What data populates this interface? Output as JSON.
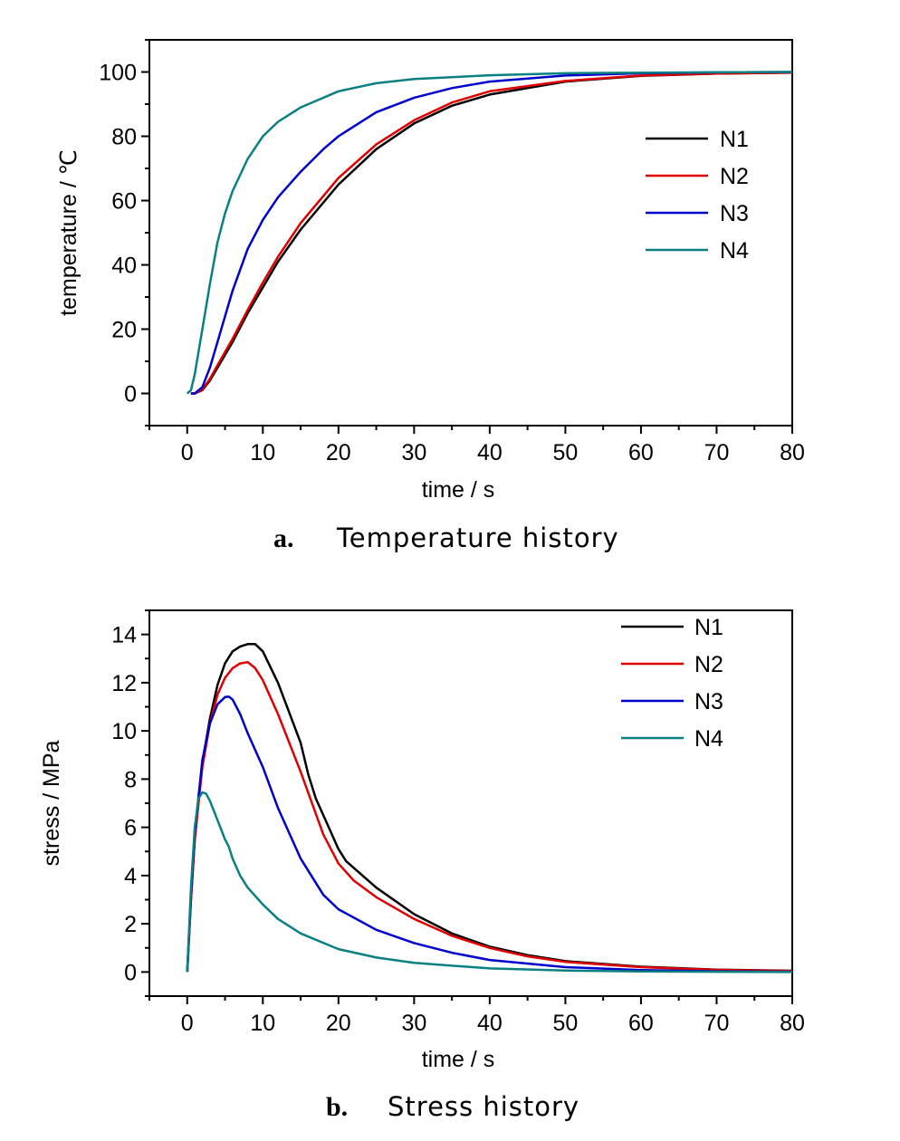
{
  "chart_data": [
    {
      "type": "line",
      "caption_letter": "a.",
      "caption_text": "Temperature history",
      "xlabel": "time / s",
      "ylabel": "temperature / ℃",
      "xlim": [
        -5,
        80
      ],
      "ylim": [
        -10,
        110
      ],
      "xticks": [
        0,
        10,
        20,
        30,
        40,
        50,
        60,
        70,
        80
      ],
      "yticks": [
        0,
        20,
        40,
        60,
        80,
        100
      ],
      "legend_position": "center-right",
      "series": [
        {
          "name": "N1",
          "color": "#000000",
          "x": [
            0.5,
            1,
            2,
            3,
            4,
            6,
            8,
            10,
            12,
            15,
            20,
            25,
            30,
            35,
            40,
            50,
            60,
            70,
            80
          ],
          "y": [
            0,
            0,
            1,
            4,
            8,
            16,
            25,
            33,
            41,
            51,
            65,
            76,
            84,
            89.5,
            93,
            97,
            98.8,
            99.5,
            99.8
          ]
        },
        {
          "name": "N2",
          "color": "#e00000",
          "x": [
            0.5,
            1,
            2,
            3,
            4,
            6,
            8,
            10,
            12,
            15,
            20,
            25,
            30,
            35,
            40,
            50,
            60,
            70,
            80
          ],
          "y": [
            0,
            0,
            1.2,
            4.5,
            8.8,
            17,
            26,
            34.5,
            42.5,
            53,
            67,
            77.5,
            85,
            90.5,
            94,
            97.2,
            98.9,
            99.5,
            99.8
          ]
        },
        {
          "name": "N3",
          "color": "#0000cc",
          "x": [
            0.5,
            1,
            2,
            3,
            4,
            6,
            8,
            10,
            12,
            15,
            18,
            20,
            25,
            30,
            35,
            40,
            50,
            60,
            70,
            80
          ],
          "y": [
            0,
            0,
            2,
            8,
            16,
            32,
            45,
            54,
            61,
            69,
            76,
            80,
            87.5,
            92,
            95,
            97,
            98.9,
            99.6,
            99.9,
            100
          ]
        },
        {
          "name": "N4",
          "color": "#0a8080",
          "x": [
            0,
            0.5,
            1,
            2,
            3,
            4,
            5,
            6,
            8,
            10,
            12,
            15,
            20,
            25,
            30,
            40,
            50,
            60,
            70,
            80
          ],
          "y": [
            0,
            1,
            6,
            20,
            34,
            47,
            56,
            63,
            73,
            80,
            84.5,
            89,
            94,
            96.5,
            97.8,
            99,
            99.6,
            99.8,
            99.9,
            100
          ]
        }
      ]
    },
    {
      "type": "line",
      "caption_letter": "b.",
      "caption_text": "Stress history",
      "xlabel": "time / s",
      "ylabel": "stress / MPa",
      "xlim": [
        -5,
        80
      ],
      "ylim": [
        -1,
        15
      ],
      "xticks": [
        0,
        10,
        20,
        30,
        40,
        50,
        60,
        70,
        80
      ],
      "yticks": [
        0,
        2,
        4,
        6,
        8,
        10,
        12,
        14
      ],
      "legend_position": "top-right",
      "series": [
        {
          "name": "N1",
          "color": "#000000",
          "x": [
            0,
            0.5,
            1,
            2,
            3,
            4,
            5,
            6,
            7,
            8,
            9,
            10,
            12,
            15,
            16,
            17,
            18,
            19,
            20,
            21,
            25,
            30,
            35,
            40,
            45,
            50,
            60,
            70,
            80
          ],
          "y": [
            0,
            3,
            5.5,
            8.7,
            10.5,
            11.9,
            12.8,
            13.3,
            13.5,
            13.6,
            13.6,
            13.3,
            12,
            9.5,
            8.2,
            7.2,
            6.5,
            5.8,
            5.1,
            4.6,
            3.5,
            2.4,
            1.6,
            1.05,
            0.7,
            0.45,
            0.22,
            0.1,
            0.05
          ]
        },
        {
          "name": "N2",
          "color": "#e00000",
          "x": [
            0,
            0.5,
            1,
            2,
            3,
            4,
            5,
            6,
            7,
            8,
            9,
            10,
            12,
            15,
            18,
            20,
            22,
            25,
            30,
            35,
            40,
            45,
            50,
            60,
            70,
            80
          ],
          "y": [
            0,
            3,
            5.5,
            8.5,
            10.3,
            11.5,
            12.2,
            12.6,
            12.8,
            12.85,
            12.6,
            12.1,
            10.7,
            8.3,
            5.7,
            4.5,
            3.8,
            3.1,
            2.2,
            1.5,
            1,
            0.65,
            0.42,
            0.2,
            0.09,
            0.04
          ]
        },
        {
          "name": "N3",
          "color": "#0000cc",
          "x": [
            0,
            0.5,
            1,
            2,
            3,
            4,
            5,
            5.5,
            6,
            7,
            8,
            10,
            12,
            15,
            18,
            20,
            25,
            30,
            35,
            40,
            50,
            60,
            70,
            80
          ],
          "y": [
            0,
            3.2,
            5.8,
            8.8,
            10.3,
            11.1,
            11.4,
            11.42,
            11.3,
            10.7,
            9.9,
            8.5,
            6.8,
            4.7,
            3.2,
            2.6,
            1.75,
            1.2,
            0.8,
            0.5,
            0.2,
            0.08,
            0.03,
            0.01
          ]
        },
        {
          "name": "N4",
          "color": "#0a8080",
          "x": [
            0,
            0.5,
            1,
            1.5,
            2,
            2.5,
            3,
            4,
            5,
            5.5,
            6,
            7,
            8,
            10,
            12,
            15,
            20,
            25,
            30,
            40,
            50,
            60,
            70,
            80
          ],
          "y": [
            0,
            3.5,
            6,
            7.2,
            7.45,
            7.4,
            7.1,
            6.3,
            5.5,
            5.2,
            4.7,
            4,
            3.5,
            2.8,
            2.2,
            1.6,
            0.95,
            0.6,
            0.38,
            0.15,
            0.06,
            0.02,
            0.01,
            0
          ]
        }
      ]
    }
  ]
}
